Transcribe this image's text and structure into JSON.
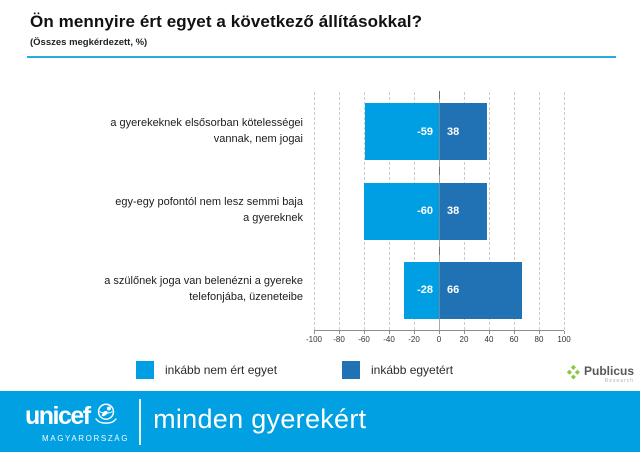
{
  "page": {
    "title": "Ön mennyire ért egyet a következő állításokkal?",
    "subtitle": "(Összes megkérdezett, %)"
  },
  "colors": {
    "accent_rule": "#29abe2",
    "negative_series": "#009fe3",
    "positive_series": "#2171b5",
    "footer_band": "#00a0e3",
    "publicus_green": "#8cc63f"
  },
  "chart_data": {
    "type": "bar",
    "orientation": "horizontal_diverging",
    "categories": [
      "a gyerekeknek elsősorban kötelességei vannak, nem jogai",
      "egy-egy pofontól nem lesz semmi baja a gyereknek",
      "a szülőnek joga van belenézni a gyereke telefonjába, üzeneteibe"
    ],
    "categories_wrapped": [
      [
        "a  gyerekeknek elsősorban kötelességei",
        "vannak, nem jogai"
      ],
      [
        "egy-egy pofontól nem lesz semmi baja",
        "a gyereknek"
      ],
      [
        "a szülőnek joga van belenézni a gyereke",
        "telefonjába, üzeneteibe"
      ]
    ],
    "series": [
      {
        "name": "inkább nem ért egyet",
        "color": "#009fe3",
        "values": [
          -59,
          -60,
          -28
        ]
      },
      {
        "name": "inkább egyetért",
        "color": "#2171b5",
        "values": [
          38,
          38,
          66
        ]
      }
    ],
    "xlim": [
      -100,
      100
    ],
    "xticks": [
      -100,
      -80,
      -60,
      -40,
      -20,
      0,
      20,
      40,
      60,
      80,
      100
    ],
    "grid": "vertical-dashed",
    "value_labels": "inside-near-zero",
    "legend_position": "bottom"
  },
  "legend": {
    "items": [
      {
        "label": "inkább nem ért egyet",
        "color": "#009fe3"
      },
      {
        "label": "inkább egyetért",
        "color": "#2171b5"
      }
    ]
  },
  "attribution": {
    "name": "Publicus",
    "sub": "Research"
  },
  "footer": {
    "brand": "unicef",
    "country": "MAGYARORSZÁG",
    "tagline": "minden gyerekért"
  }
}
